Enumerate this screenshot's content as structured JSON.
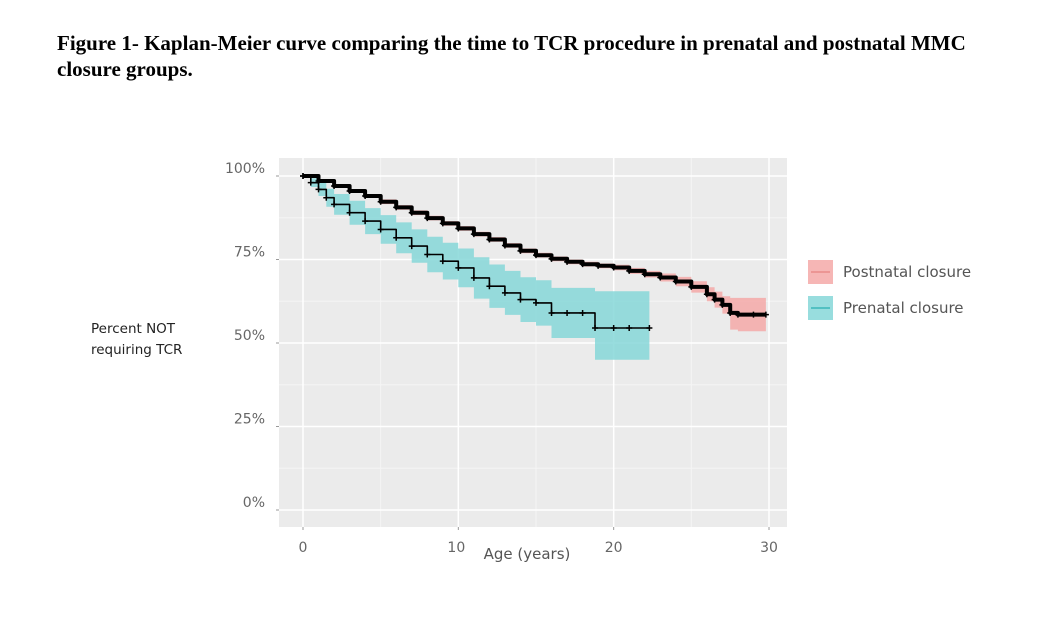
{
  "figure": {
    "caption": "Figure 1- Kaplan-Meier curve comparing the time to TCR procedure in prenatal and postnatal MMC closure groups."
  },
  "chart_data": {
    "type": "line",
    "subtype": "kaplan-meier",
    "title": "Figure 1- Kaplan-Meier curve comparing the time to TCR procedure in prenatal and postnatal MMC closure groups.",
    "xlabel": "Age (years)",
    "ylabel": "Percent NOT requiring TCR",
    "xlim": [
      -1.5,
      31
    ],
    "ylim": [
      -3,
      105
    ],
    "xticks": [
      0,
      10,
      20,
      30
    ],
    "xtick_labels": [
      "0",
      "10",
      "20",
      "30"
    ],
    "yticks": [
      0,
      25,
      50,
      75,
      100
    ],
    "ytick_labels": [
      "0%",
      "25%",
      "50%",
      "75%",
      "100%"
    ],
    "grid": true,
    "legend_position": "right",
    "series": [
      {
        "name": "Postnatal closure",
        "color": "#f4a9a8",
        "line_color": "#000000",
        "x": [
          0,
          1,
          2,
          3,
          4,
          5,
          6,
          7,
          8,
          9,
          10,
          11,
          12,
          13,
          14,
          15,
          16,
          17,
          18,
          19,
          20,
          21,
          22,
          23,
          24,
          25,
          26,
          26.5,
          27,
          27.5,
          28,
          29,
          29.8
        ],
        "y": [
          100,
          98.5,
          97,
          95.5,
          94,
          92.3,
          90.6,
          89,
          87.4,
          85.8,
          84.3,
          82.6,
          81,
          79.2,
          77.6,
          76.3,
          75.2,
          74.3,
          73.6,
          73.1,
          72.6,
          71.6,
          70.6,
          69.6,
          68.4,
          66.8,
          64.6,
          63,
          61.4,
          59,
          58.5,
          58.5,
          58.5
        ],
        "upper": [
          100,
          99,
          97.6,
          96.1,
          94.6,
          93,
          91.3,
          89.7,
          88.1,
          86.5,
          85,
          83.3,
          81.7,
          79.9,
          78.3,
          77,
          75.9,
          75,
          74.3,
          73.8,
          73.4,
          72.5,
          71.6,
          70.8,
          69.8,
          68.5,
          66.7,
          65.4,
          64,
          63.5,
          63.5,
          63.5,
          63.5
        ],
        "lower": [
          100,
          98,
          96.4,
          94.9,
          93.4,
          91.6,
          89.9,
          88.3,
          86.7,
          85.1,
          83.6,
          81.9,
          80.3,
          78.5,
          76.9,
          75.6,
          74.5,
          73.6,
          72.9,
          72.4,
          71.8,
          70.7,
          69.6,
          68.4,
          67,
          65.1,
          62.5,
          60.6,
          58.8,
          54,
          53.5,
          53.5,
          53.5
        ]
      },
      {
        "name": "Prenatal closure",
        "color": "#86d7d8",
        "line_color": "#000000",
        "x": [
          0,
          0.5,
          1,
          1.5,
          2,
          3,
          4,
          5,
          6,
          7,
          8,
          9,
          10,
          11,
          12,
          13,
          14,
          15,
          16,
          17,
          18,
          18.8,
          20,
          21,
          22.3
        ],
        "y": [
          100,
          98,
          96,
          93.5,
          91.5,
          89,
          86.5,
          84,
          81.5,
          79,
          76.5,
          74.5,
          72.5,
          69.5,
          67,
          65,
          63,
          62,
          59,
          59,
          59,
          54.5,
          54.5,
          54.5,
          54.5
        ],
        "upper": [
          100,
          99.3,
          98,
          96.2,
          94.6,
          92.6,
          90.4,
          88.3,
          86.1,
          84,
          81.8,
          80,
          78.3,
          75.7,
          73.5,
          71.6,
          69.7,
          68.8,
          66.5,
          66.5,
          66.5,
          65.5,
          65.5,
          65.5,
          65.5
        ],
        "lower": [
          100,
          96.7,
          94,
          90.8,
          88.4,
          85.4,
          82.6,
          79.7,
          76.9,
          74,
          71.2,
          69,
          66.7,
          63.3,
          60.5,
          58.4,
          56.3,
          55.2,
          51.5,
          51.5,
          51.5,
          45,
          45,
          45,
          45
        ]
      }
    ]
  }
}
